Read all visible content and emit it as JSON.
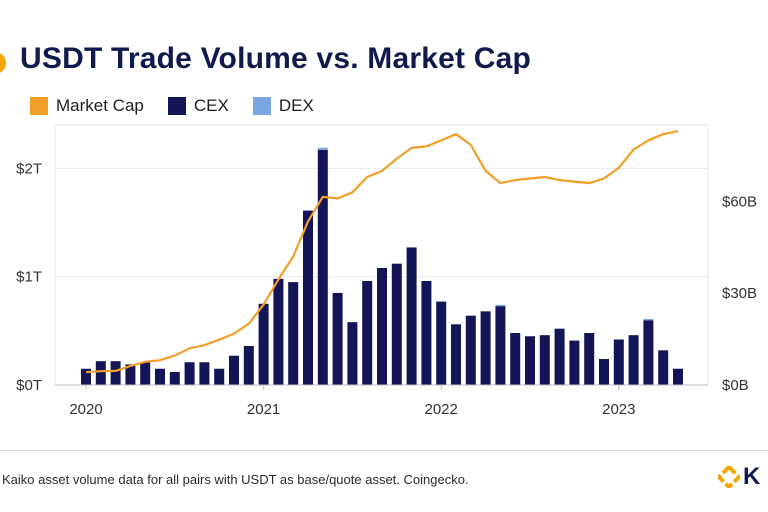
{
  "title": "USDT Trade Volume vs. Market Cap",
  "legend": [
    {
      "label": "Market Cap",
      "color": "#f29f2a"
    },
    {
      "label": "CEX",
      "color": "#141556"
    },
    {
      "label": "DEX",
      "color": "#7aa7e3"
    }
  ],
  "footer": {
    "source": "Kaiko asset volume data for all pairs with USDT as base/quote asset. Coingecko.",
    "logo_text": "K"
  },
  "chart_data": {
    "type": "bar",
    "title": "USDT Trade Volume vs. Market Cap",
    "x_ticks": [
      {
        "label": "2020",
        "index": 0
      },
      {
        "label": "2021",
        "index": 12
      },
      {
        "label": "2022",
        "index": 24
      },
      {
        "label": "2023",
        "index": 36
      }
    ],
    "left_axis": {
      "ylim": [
        0,
        2.4
      ],
      "ticks": [
        {
          "v": 0,
          "label": "$0T"
        },
        {
          "v": 1,
          "label": "$1T"
        },
        {
          "v": 2,
          "label": "$2T"
        }
      ]
    },
    "right_axis": {
      "ylim": [
        0,
        85
      ],
      "ticks": [
        {
          "v": 0,
          "label": "$0B"
        },
        {
          "v": 30,
          "label": "$30B"
        },
        {
          "v": 60,
          "label": "$60B"
        }
      ]
    },
    "series": [
      {
        "name": "CEX",
        "type": "bar",
        "axis": "left",
        "values": [
          0.15,
          0.22,
          0.22,
          0.19,
          0.21,
          0.15,
          0.12,
          0.21,
          0.21,
          0.15,
          0.27,
          0.36,
          0.75,
          0.98,
          0.95,
          1.61,
          2.17,
          0.85,
          0.58,
          0.96,
          1.08,
          1.12,
          1.27,
          0.96,
          0.77,
          0.56,
          0.64,
          0.68,
          0.73,
          0.48,
          0.45,
          0.46,
          0.52,
          0.41,
          0.48,
          0.24,
          0.42,
          0.46,
          0.6,
          0.32,
          0.15
        ]
      },
      {
        "name": "DEX",
        "type": "bar",
        "axis": "left",
        "values": [
          0,
          0,
          0,
          0,
          0,
          0,
          0,
          0,
          0,
          0,
          0,
          0,
          0,
          0,
          0,
          0,
          0.02,
          0,
          0,
          0,
          0,
          0,
          0,
          0,
          0,
          0,
          0,
          0,
          0.01,
          0,
          0,
          0,
          0,
          0,
          0,
          0,
          0,
          0,
          0.01,
          0,
          0
        ]
      },
      {
        "name": "Market Cap",
        "type": "line",
        "axis": "right",
        "values": [
          4.2,
          4.5,
          4.6,
          6.2,
          7.6,
          8.1,
          9.6,
          12.0,
          13.0,
          14.8,
          16.8,
          20.0,
          26.3,
          34.5,
          42.0,
          53.5,
          61.5,
          61.0,
          63.0,
          68.0,
          70.0,
          74.0,
          77.5,
          78.0,
          80.0,
          82.0,
          78.5,
          70.0,
          66.0,
          67.0,
          67.5,
          68.0,
          67.0,
          66.5,
          66.0,
          67.5,
          71.0,
          77.0,
          80.0,
          82.0,
          83.0
        ]
      }
    ]
  }
}
